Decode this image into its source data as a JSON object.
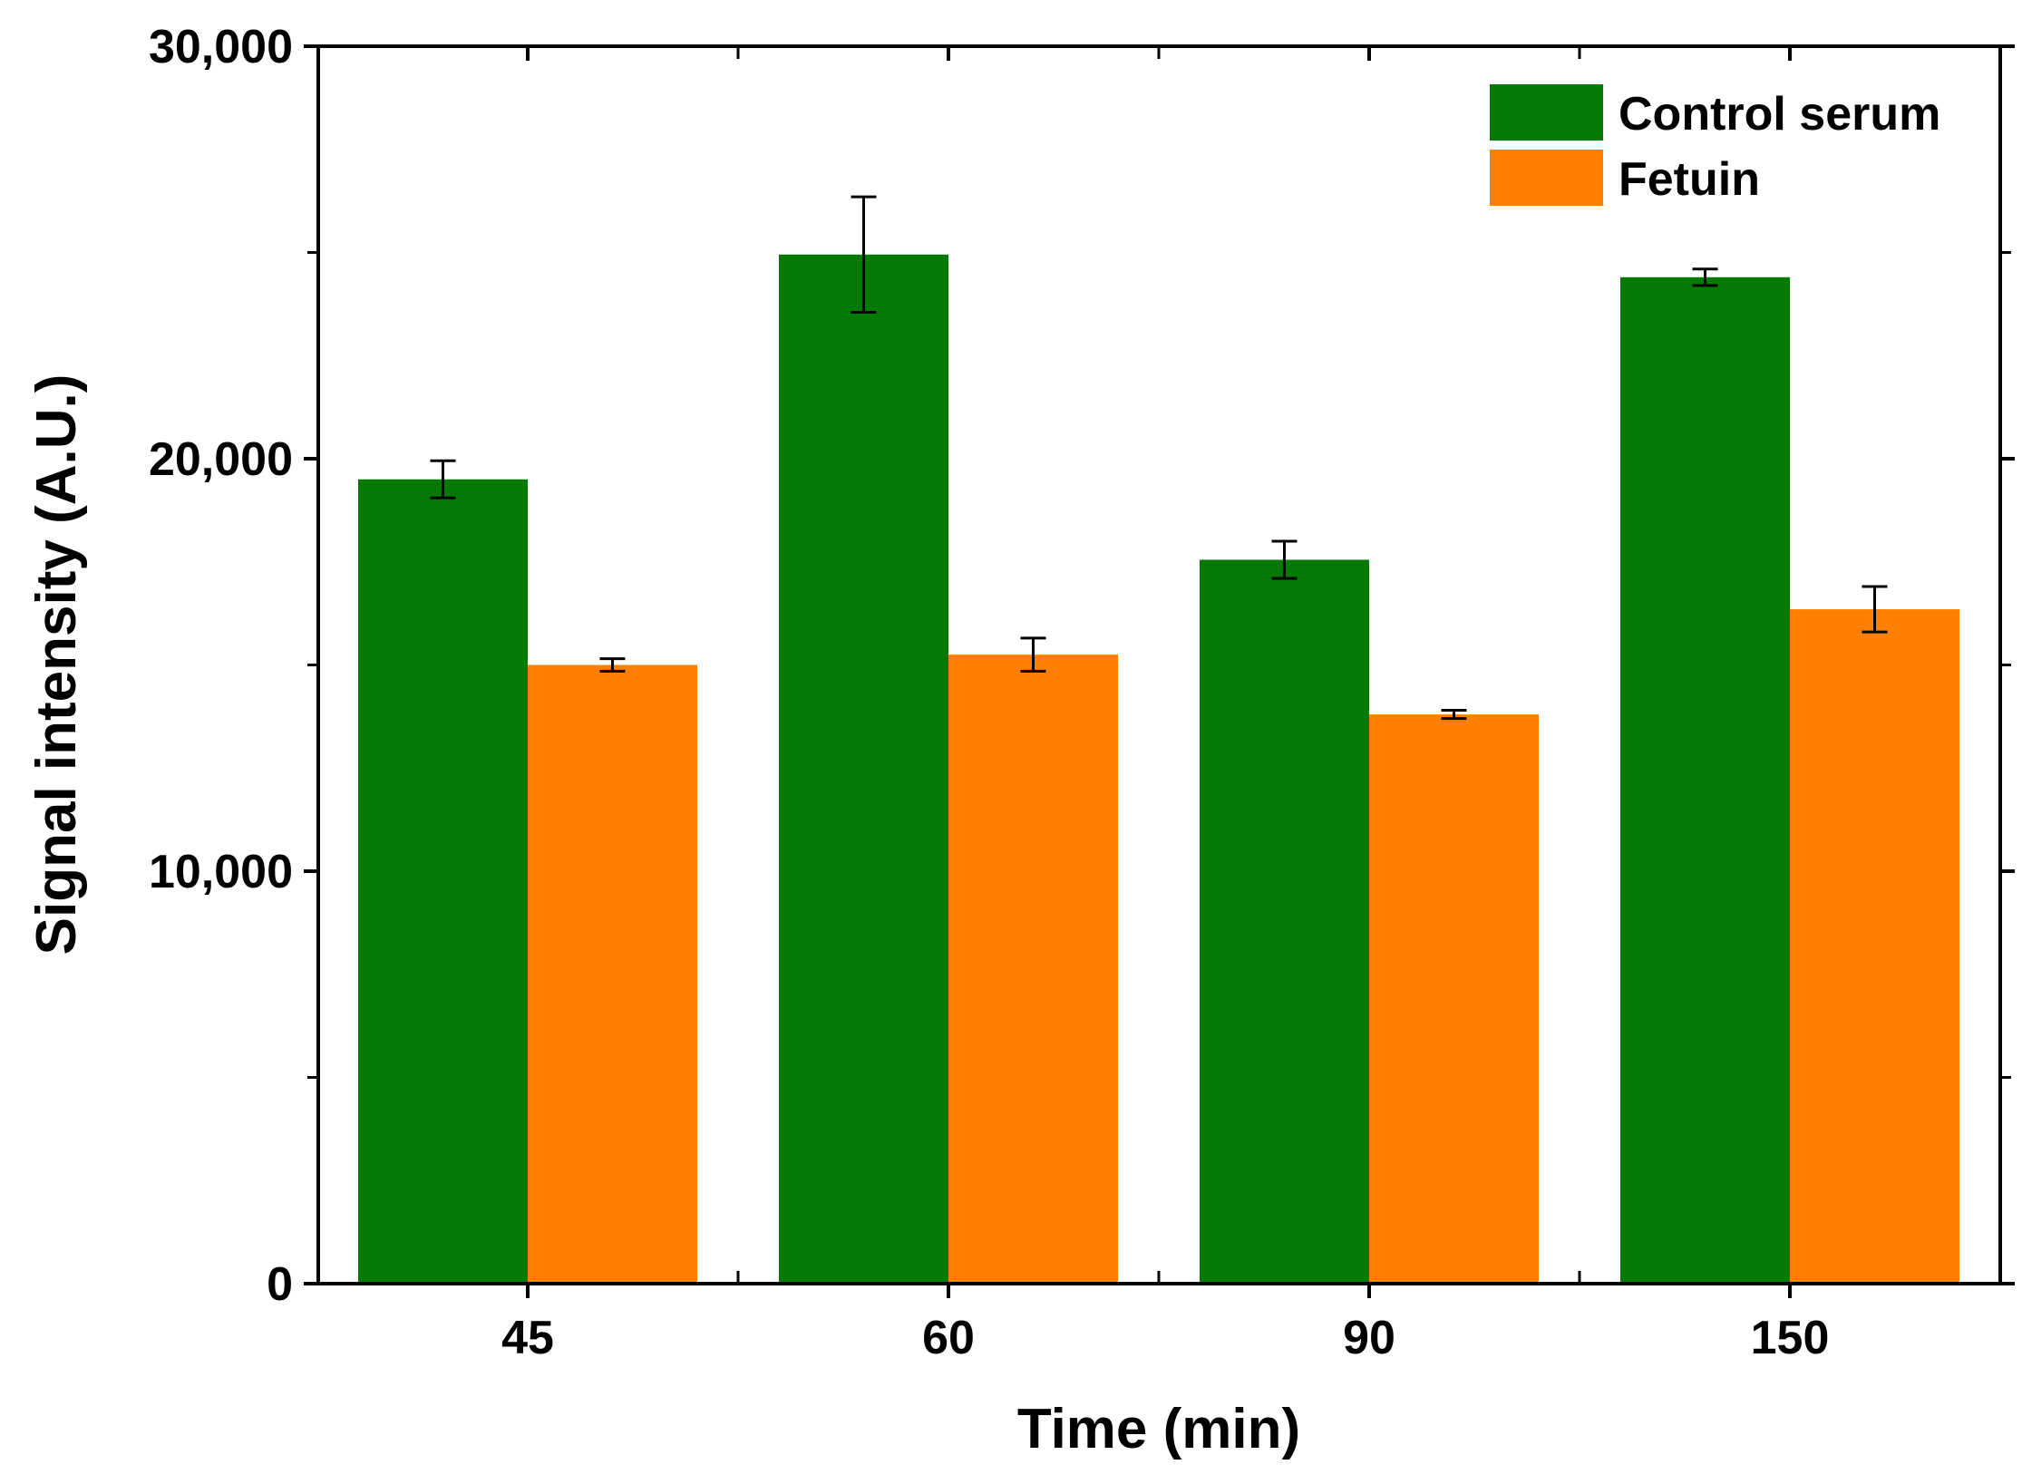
{
  "chart_data": {
    "type": "bar",
    "title": "",
    "xlabel": "Time (min)",
    "ylabel": "Signal intensity (A.U.)",
    "ylim": [
      0,
      30000
    ],
    "yticks": [
      0,
      10000,
      20000,
      30000
    ],
    "ytick_labels": [
      "0",
      "10,000",
      "20,000",
      "30,000"
    ],
    "categories": [
      "45",
      "60",
      "90",
      "150"
    ],
    "series": [
      {
        "name": "Control serum",
        "color": "#047a04",
        "values": [
          19500,
          24950,
          17550,
          24400
        ],
        "errors": [
          450,
          1400,
          450,
          200
        ]
      },
      {
        "name": "Fetuin",
        "color": "#ff8000",
        "values": [
          15000,
          15250,
          13800,
          16350
        ],
        "errors": [
          150,
          400,
          100,
          550
        ]
      }
    ],
    "legend_position": "top-right"
  }
}
